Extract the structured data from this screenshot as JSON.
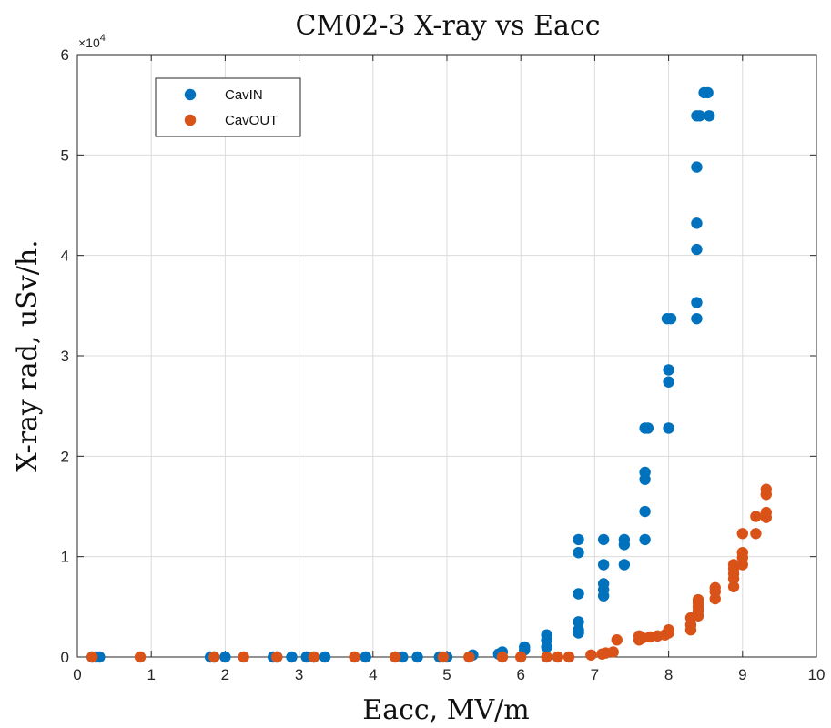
{
  "chart_data": {
    "type": "scatter",
    "title": "CM02-3 X-ray vs Eacc",
    "xlabel": "Eacc, MV/m",
    "ylabel": "X-ray rad, uSv/h.",
    "xlim": [
      0,
      10
    ],
    "ylim": [
      0,
      60000
    ],
    "x_ticks": [
      0,
      1,
      2,
      3,
      4,
      5,
      6,
      7,
      8,
      9,
      10
    ],
    "y_ticks": [
      0,
      10000,
      20000,
      30000,
      40000,
      50000,
      60000
    ],
    "y_tick_labels": [
      "0",
      "1",
      "2",
      "3",
      "4",
      "5",
      "6"
    ],
    "y_exponent_label": "×10",
    "y_exponent_power": "4",
    "grid": true,
    "legend_position": "top-left",
    "series": [
      {
        "name": "CavIN",
        "color": "#0072BD",
        "points": [
          [
            0.2,
            0
          ],
          [
            0.25,
            0
          ],
          [
            0.3,
            0
          ],
          [
            1.8,
            0
          ],
          [
            1.85,
            0
          ],
          [
            2.0,
            0
          ],
          [
            2.65,
            0
          ],
          [
            2.7,
            0
          ],
          [
            2.9,
            0
          ],
          [
            3.1,
            0
          ],
          [
            3.2,
            0
          ],
          [
            3.35,
            0
          ],
          [
            3.9,
            0
          ],
          [
            4.4,
            0
          ],
          [
            4.6,
            0
          ],
          [
            4.9,
            0
          ],
          [
            5.0,
            0
          ],
          [
            5.35,
            200
          ],
          [
            5.7,
            300
          ],
          [
            5.75,
            500
          ],
          [
            6.05,
            700
          ],
          [
            6.05,
            1000
          ],
          [
            6.35,
            1000
          ],
          [
            6.35,
            1700
          ],
          [
            6.35,
            2200
          ],
          [
            6.78,
            2400
          ],
          [
            6.78,
            2700
          ],
          [
            6.78,
            3500
          ],
          [
            6.78,
            6300
          ],
          [
            6.78,
            10400
          ],
          [
            6.78,
            11700
          ],
          [
            7.12,
            6100
          ],
          [
            7.12,
            6700
          ],
          [
            7.12,
            7300
          ],
          [
            7.12,
            9200
          ],
          [
            7.12,
            11700
          ],
          [
            7.4,
            9200
          ],
          [
            7.4,
            11200
          ],
          [
            7.4,
            11700
          ],
          [
            7.68,
            11700
          ],
          [
            7.68,
            14500
          ],
          [
            7.68,
            17700
          ],
          [
            7.68,
            18400
          ],
          [
            7.68,
            22800
          ],
          [
            7.72,
            22800
          ],
          [
            7.98,
            33700
          ],
          [
            8.03,
            33700
          ],
          [
            8.0,
            22800
          ],
          [
            8.0,
            27400
          ],
          [
            8.0,
            28600
          ],
          [
            8.38,
            33700
          ],
          [
            8.38,
            35300
          ],
          [
            8.38,
            40600
          ],
          [
            8.38,
            43200
          ],
          [
            8.38,
            48800
          ],
          [
            8.38,
            53900
          ],
          [
            8.42,
            53900
          ],
          [
            8.48,
            56200
          ],
          [
            8.53,
            56200
          ],
          [
            8.55,
            53900
          ]
        ]
      },
      {
        "name": "CavOUT",
        "color": "#D95319",
        "points": [
          [
            0.2,
            0
          ],
          [
            0.85,
            0
          ],
          [
            1.85,
            0
          ],
          [
            2.25,
            0
          ],
          [
            2.7,
            0
          ],
          [
            3.2,
            0
          ],
          [
            3.75,
            0
          ],
          [
            4.3,
            0
          ],
          [
            4.95,
            0
          ],
          [
            5.3,
            0
          ],
          [
            5.75,
            0
          ],
          [
            6.0,
            0
          ],
          [
            6.35,
            0
          ],
          [
            6.5,
            0
          ],
          [
            6.65,
            0
          ],
          [
            6.95,
            200
          ],
          [
            7.1,
            300
          ],
          [
            7.15,
            400
          ],
          [
            7.25,
            500
          ],
          [
            7.3,
            1700
          ],
          [
            7.6,
            1700
          ],
          [
            7.6,
            2100
          ],
          [
            7.65,
            1900
          ],
          [
            7.75,
            2000
          ],
          [
            7.85,
            2100
          ],
          [
            7.95,
            2200
          ],
          [
            8.0,
            2400
          ],
          [
            8.0,
            2700
          ],
          [
            8.3,
            2700
          ],
          [
            8.3,
            3200
          ],
          [
            8.3,
            3900
          ],
          [
            8.4,
            4100
          ],
          [
            8.4,
            4600
          ],
          [
            8.4,
            5000
          ],
          [
            8.4,
            5400
          ],
          [
            8.4,
            5700
          ],
          [
            8.63,
            5800
          ],
          [
            8.63,
            6500
          ],
          [
            8.63,
            6900
          ],
          [
            8.88,
            7000
          ],
          [
            8.88,
            7800
          ],
          [
            8.88,
            8300
          ],
          [
            8.88,
            8800
          ],
          [
            8.88,
            9200
          ],
          [
            9.0,
            9200
          ],
          [
            9.0,
            9900
          ],
          [
            9.0,
            10400
          ],
          [
            9.0,
            12300
          ],
          [
            9.18,
            12300
          ],
          [
            9.18,
            14000
          ],
          [
            9.32,
            13900
          ],
          [
            9.32,
            14400
          ],
          [
            9.32,
            16200
          ],
          [
            9.32,
            16700
          ]
        ]
      }
    ]
  }
}
